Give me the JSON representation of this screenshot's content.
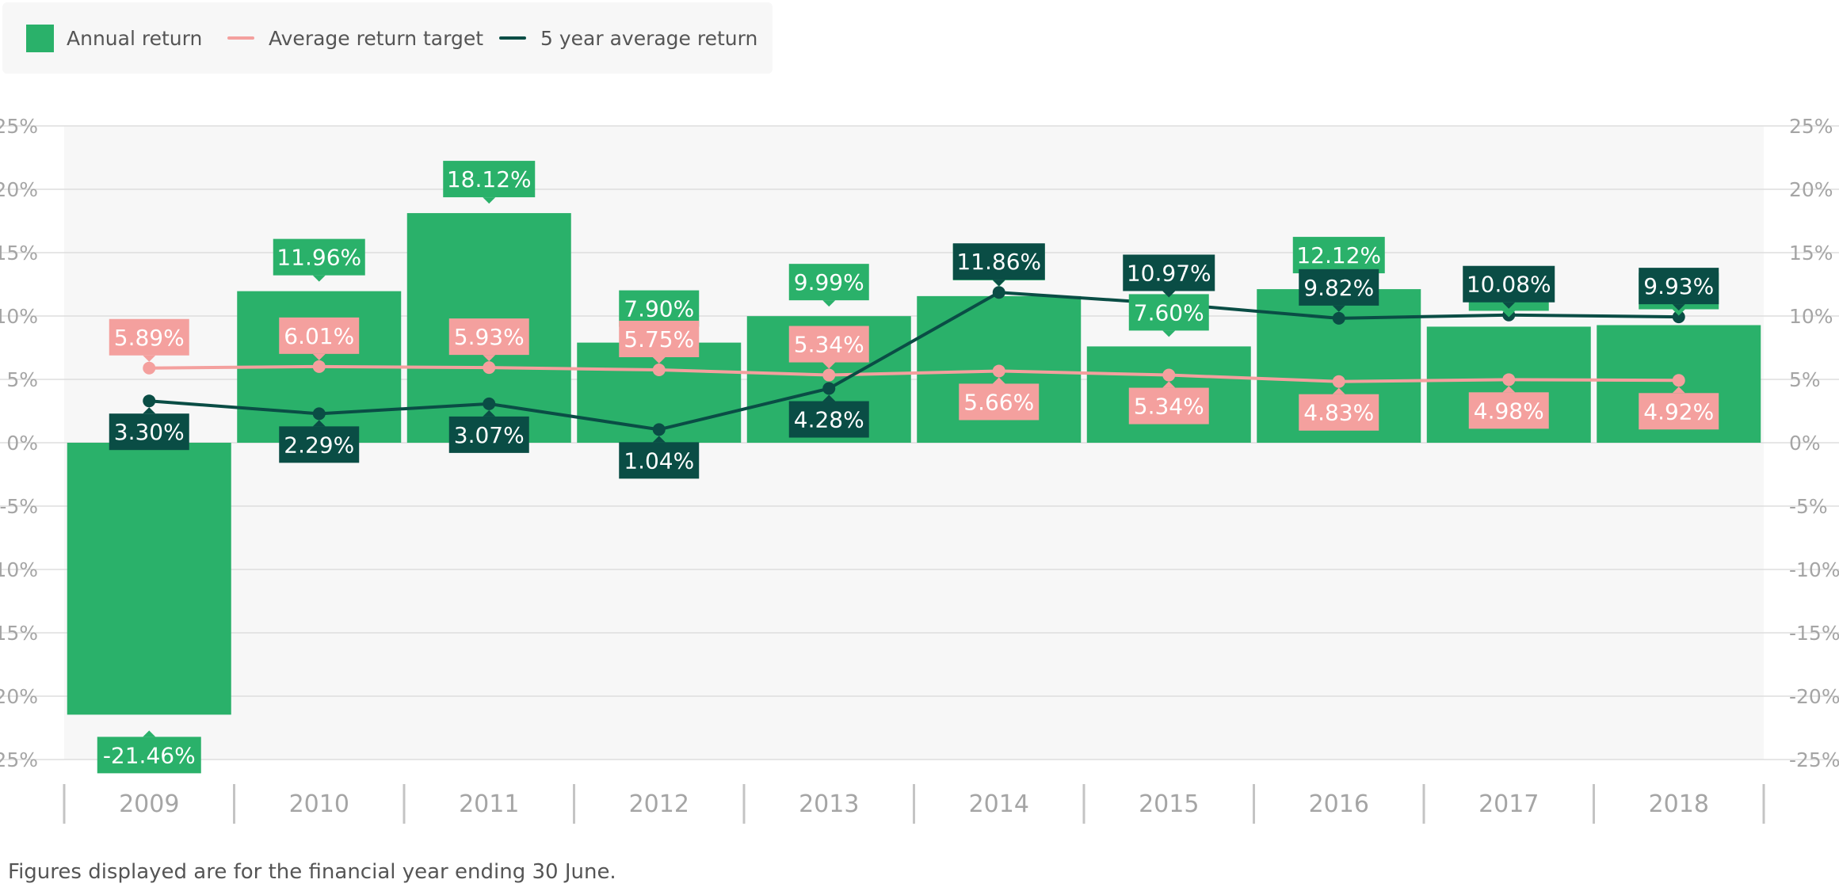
{
  "legend": {
    "annual_label": "Annual return",
    "target_label": "Average return target",
    "avg5_label": "5 year average return"
  },
  "colors": {
    "annual": "#2ab16a",
    "target": "#f4a09e",
    "avg5": "#0a4d45",
    "grid": "#dddddd",
    "tick": "#c4c4c4",
    "plot_bg": "#f7f7f7",
    "axis_label": "#a5a5a5"
  },
  "footnote": "Figures displayed are for the financial year ending 30 June.",
  "chart_data": {
    "type": "bar",
    "categories": [
      "2009",
      "2010",
      "2011",
      "2012",
      "2013",
      "2014",
      "2015",
      "2016",
      "2017",
      "2018"
    ],
    "series": [
      {
        "name": "Annual return",
        "type": "bar",
        "values": [
          -21.46,
          11.96,
          18.12,
          7.9,
          9.99,
          11.57,
          7.6,
          12.12,
          9.16,
          9.28
        ]
      },
      {
        "name": "Average return target",
        "type": "line",
        "values": [
          5.89,
          6.01,
          5.93,
          5.75,
          5.34,
          5.66,
          5.34,
          4.83,
          4.98,
          4.92
        ]
      },
      {
        "name": "5 year average return",
        "type": "line",
        "values": [
          3.3,
          2.29,
          3.07,
          1.04,
          4.28,
          11.86,
          10.97,
          9.82,
          10.08,
          9.93
        ]
      }
    ],
    "data_label_format": "{v}%",
    "yticks": [
      "25%",
      "20%",
      "15%",
      "10%",
      "5%",
      "0%",
      "-5%",
      "-10%",
      "-15%",
      "-20%",
      "-25%"
    ],
    "ylim": [
      -25,
      25
    ],
    "grid": true,
    "legend_position": "top-left"
  }
}
